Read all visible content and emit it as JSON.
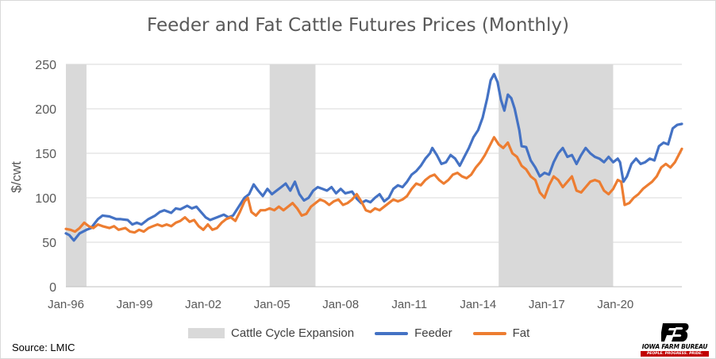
{
  "chart_data": {
    "type": "line",
    "title": "Feeder and Fat Cattle Futures Prices (Monthly)",
    "xlabel": "",
    "ylabel": "$/cwt",
    "ylim": [
      0,
      250
    ],
    "yticks": [
      0,
      50,
      100,
      150,
      200,
      250
    ],
    "xlim": [
      1996.0,
      2022.9
    ],
    "xticks": [
      {
        "label": "Jan-96",
        "x": 1996
      },
      {
        "label": "Jan-99",
        "x": 1999
      },
      {
        "label": "Jan-02",
        "x": 2002
      },
      {
        "label": "Jan-05",
        "x": 2005
      },
      {
        "label": "Jan-08",
        "x": 2008
      },
      {
        "label": "Jan-11",
        "x": 2011
      },
      {
        "label": "Jan-14",
        "x": 2014
      },
      {
        "label": "Jan-17",
        "x": 2017
      },
      {
        "label": "Jan-20",
        "x": 2020
      }
    ],
    "grid": true,
    "legend_position": "bottom",
    "shaded_periods": {
      "name": "Cattle Cycle Expansion",
      "color": "#d9d9d9",
      "ranges": [
        [
          1996.0,
          1996.9
        ],
        [
          2004.9,
          2006.9
        ],
        [
          2014.9,
          2019.9
        ]
      ]
    },
    "series": [
      {
        "name": "Feeder",
        "color": "#4472c4",
        "points": [
          [
            1996.0,
            60
          ],
          [
            1996.15,
            58
          ],
          [
            1996.35,
            52
          ],
          [
            1996.6,
            60
          ],
          [
            1996.9,
            64
          ],
          [
            1997.1,
            66
          ],
          [
            1997.4,
            76
          ],
          [
            1997.6,
            80
          ],
          [
            1997.9,
            79
          ],
          [
            1998.2,
            76
          ],
          [
            1998.4,
            76
          ],
          [
            1998.7,
            75
          ],
          [
            1998.9,
            70
          ],
          [
            1999.1,
            72
          ],
          [
            1999.3,
            70
          ],
          [
            1999.6,
            76
          ],
          [
            1999.9,
            80
          ],
          [
            2000.1,
            84
          ],
          [
            2000.3,
            86
          ],
          [
            2000.6,
            83
          ],
          [
            2000.8,
            88
          ],
          [
            2001.0,
            87
          ],
          [
            2001.3,
            91
          ],
          [
            2001.5,
            88
          ],
          [
            2001.7,
            90
          ],
          [
            2001.9,
            84
          ],
          [
            2002.1,
            78
          ],
          [
            2002.3,
            75
          ],
          [
            2002.6,
            78
          ],
          [
            2002.9,
            81
          ],
          [
            2003.1,
            78
          ],
          [
            2003.3,
            80
          ],
          [
            2003.6,
            92
          ],
          [
            2003.8,
            100
          ],
          [
            2004.0,
            104
          ],
          [
            2004.2,
            115
          ],
          [
            2004.4,
            108
          ],
          [
            2004.6,
            102
          ],
          [
            2004.8,
            110
          ],
          [
            2005.0,
            104
          ],
          [
            2005.2,
            108
          ],
          [
            2005.4,
            112
          ],
          [
            2005.6,
            116
          ],
          [
            2005.8,
            108
          ],
          [
            2006.0,
            118
          ],
          [
            2006.2,
            104
          ],
          [
            2006.4,
            97
          ],
          [
            2006.6,
            100
          ],
          [
            2006.8,
            108
          ],
          [
            2007.0,
            112
          ],
          [
            2007.2,
            110
          ],
          [
            2007.4,
            108
          ],
          [
            2007.6,
            112
          ],
          [
            2007.8,
            105
          ],
          [
            2008.0,
            110
          ],
          [
            2008.2,
            105
          ],
          [
            2008.5,
            107
          ],
          [
            2008.7,
            99
          ],
          [
            2008.9,
            94
          ],
          [
            2009.1,
            97
          ],
          [
            2009.3,
            95
          ],
          [
            2009.5,
            100
          ],
          [
            2009.7,
            104
          ],
          [
            2009.9,
            96
          ],
          [
            2010.1,
            100
          ],
          [
            2010.3,
            110
          ],
          [
            2010.5,
            114
          ],
          [
            2010.7,
            112
          ],
          [
            2010.9,
            118
          ],
          [
            2011.1,
            126
          ],
          [
            2011.3,
            130
          ],
          [
            2011.5,
            136
          ],
          [
            2011.7,
            144
          ],
          [
            2011.9,
            150
          ],
          [
            2012.0,
            156
          ],
          [
            2012.2,
            148
          ],
          [
            2012.4,
            138
          ],
          [
            2012.6,
            140
          ],
          [
            2012.8,
            148
          ],
          [
            2013.0,
            144
          ],
          [
            2013.2,
            136
          ],
          [
            2013.4,
            146
          ],
          [
            2013.6,
            156
          ],
          [
            2013.8,
            168
          ],
          [
            2014.0,
            176
          ],
          [
            2014.2,
            190
          ],
          [
            2014.4,
            212
          ],
          [
            2014.55,
            232
          ],
          [
            2014.7,
            239
          ],
          [
            2014.85,
            230
          ],
          [
            2015.0,
            210
          ],
          [
            2015.15,
            198
          ],
          [
            2015.3,
            216
          ],
          [
            2015.45,
            212
          ],
          [
            2015.6,
            200
          ],
          [
            2015.8,
            176
          ],
          [
            2015.9,
            158
          ],
          [
            2016.1,
            157
          ],
          [
            2016.3,
            142
          ],
          [
            2016.5,
            134
          ],
          [
            2016.7,
            124
          ],
          [
            2016.9,
            128
          ],
          [
            2017.1,
            126
          ],
          [
            2017.3,
            140
          ],
          [
            2017.5,
            150
          ],
          [
            2017.7,
            156
          ],
          [
            2017.9,
            146
          ],
          [
            2018.1,
            148
          ],
          [
            2018.3,
            138
          ],
          [
            2018.5,
            148
          ],
          [
            2018.7,
            156
          ],
          [
            2018.9,
            150
          ],
          [
            2019.1,
            146
          ],
          [
            2019.3,
            144
          ],
          [
            2019.5,
            140
          ],
          [
            2019.7,
            146
          ],
          [
            2019.9,
            140
          ],
          [
            2020.1,
            144
          ],
          [
            2020.2,
            140
          ],
          [
            2020.35,
            118
          ],
          [
            2020.5,
            124
          ],
          [
            2020.7,
            138
          ],
          [
            2020.9,
            144
          ],
          [
            2021.1,
            138
          ],
          [
            2021.3,
            140
          ],
          [
            2021.5,
            144
          ],
          [
            2021.7,
            142
          ],
          [
            2021.9,
            158
          ],
          [
            2022.1,
            162
          ],
          [
            2022.3,
            160
          ],
          [
            2022.5,
            178
          ],
          [
            2022.7,
            182
          ],
          [
            2022.9,
            183
          ]
        ]
      },
      {
        "name": "Fat",
        "color": "#ed7d31",
        "points": [
          [
            1996.0,
            65
          ],
          [
            1996.2,
            64
          ],
          [
            1996.4,
            62
          ],
          [
            1996.6,
            66
          ],
          [
            1996.8,
            72
          ],
          [
            1997.0,
            68
          ],
          [
            1997.2,
            66
          ],
          [
            1997.4,
            70
          ],
          [
            1997.6,
            68
          ],
          [
            1997.9,
            66
          ],
          [
            1998.1,
            68
          ],
          [
            1998.3,
            64
          ],
          [
            1998.6,
            66
          ],
          [
            1998.8,
            62
          ],
          [
            1999.0,
            61
          ],
          [
            1999.2,
            64
          ],
          [
            1999.4,
            62
          ],
          [
            1999.6,
            66
          ],
          [
            1999.8,
            68
          ],
          [
            2000.0,
            70
          ],
          [
            2000.2,
            68
          ],
          [
            2000.4,
            70
          ],
          [
            2000.6,
            68
          ],
          [
            2000.8,
            72
          ],
          [
            2001.0,
            74
          ],
          [
            2001.2,
            78
          ],
          [
            2001.4,
            73
          ],
          [
            2001.6,
            75
          ],
          [
            2001.8,
            68
          ],
          [
            2002.0,
            64
          ],
          [
            2002.2,
            70
          ],
          [
            2002.4,
            64
          ],
          [
            2002.6,
            66
          ],
          [
            2002.8,
            72
          ],
          [
            2003.0,
            76
          ],
          [
            2003.2,
            78
          ],
          [
            2003.4,
            74
          ],
          [
            2003.6,
            84
          ],
          [
            2003.8,
            96
          ],
          [
            2003.95,
            100
          ],
          [
            2004.1,
            84
          ],
          [
            2004.3,
            80
          ],
          [
            2004.5,
            86
          ],
          [
            2004.7,
            86
          ],
          [
            2004.9,
            88
          ],
          [
            2005.1,
            86
          ],
          [
            2005.3,
            90
          ],
          [
            2005.5,
            86
          ],
          [
            2005.7,
            90
          ],
          [
            2005.9,
            94
          ],
          [
            2006.1,
            88
          ],
          [
            2006.3,
            80
          ],
          [
            2006.5,
            82
          ],
          [
            2006.7,
            90
          ],
          [
            2006.9,
            94
          ],
          [
            2007.1,
            98
          ],
          [
            2007.3,
            96
          ],
          [
            2007.5,
            92
          ],
          [
            2007.7,
            96
          ],
          [
            2007.9,
            98
          ],
          [
            2008.1,
            92
          ],
          [
            2008.3,
            94
          ],
          [
            2008.5,
            98
          ],
          [
            2008.7,
            104
          ],
          [
            2008.9,
            96
          ],
          [
            2009.1,
            86
          ],
          [
            2009.3,
            84
          ],
          [
            2009.5,
            88
          ],
          [
            2009.7,
            86
          ],
          [
            2009.9,
            90
          ],
          [
            2010.1,
            94
          ],
          [
            2010.3,
            98
          ],
          [
            2010.5,
            96
          ],
          [
            2010.7,
            98
          ],
          [
            2010.9,
            102
          ],
          [
            2011.1,
            110
          ],
          [
            2011.3,
            116
          ],
          [
            2011.5,
            114
          ],
          [
            2011.7,
            120
          ],
          [
            2011.9,
            124
          ],
          [
            2012.1,
            126
          ],
          [
            2012.3,
            120
          ],
          [
            2012.5,
            116
          ],
          [
            2012.7,
            120
          ],
          [
            2012.9,
            126
          ],
          [
            2013.1,
            128
          ],
          [
            2013.3,
            124
          ],
          [
            2013.5,
            122
          ],
          [
            2013.7,
            126
          ],
          [
            2013.9,
            134
          ],
          [
            2014.1,
            140
          ],
          [
            2014.3,
            148
          ],
          [
            2014.5,
            158
          ],
          [
            2014.7,
            168
          ],
          [
            2014.9,
            160
          ],
          [
            2015.1,
            156
          ],
          [
            2015.3,
            162
          ],
          [
            2015.5,
            150
          ],
          [
            2015.7,
            146
          ],
          [
            2015.9,
            136
          ],
          [
            2016.1,
            132
          ],
          [
            2016.3,
            124
          ],
          [
            2016.5,
            120
          ],
          [
            2016.7,
            106
          ],
          [
            2016.9,
            100
          ],
          [
            2017.1,
            114
          ],
          [
            2017.3,
            124
          ],
          [
            2017.5,
            120
          ],
          [
            2017.7,
            112
          ],
          [
            2017.9,
            118
          ],
          [
            2018.1,
            124
          ],
          [
            2018.3,
            108
          ],
          [
            2018.5,
            106
          ],
          [
            2018.7,
            112
          ],
          [
            2018.9,
            118
          ],
          [
            2019.1,
            120
          ],
          [
            2019.3,
            118
          ],
          [
            2019.5,
            108
          ],
          [
            2019.7,
            104
          ],
          [
            2019.9,
            110
          ],
          [
            2020.1,
            120
          ],
          [
            2020.25,
            118
          ],
          [
            2020.4,
            92
          ],
          [
            2020.6,
            94
          ],
          [
            2020.8,
            100
          ],
          [
            2021.0,
            104
          ],
          [
            2021.2,
            110
          ],
          [
            2021.4,
            114
          ],
          [
            2021.6,
            118
          ],
          [
            2021.8,
            124
          ],
          [
            2022.0,
            134
          ],
          [
            2022.2,
            138
          ],
          [
            2022.4,
            134
          ],
          [
            2022.6,
            140
          ],
          [
            2022.8,
            150
          ],
          [
            2022.9,
            155
          ]
        ]
      }
    ]
  },
  "source": "Source: LMIC",
  "logo": {
    "name": "IOWA FARM BUREAU",
    "tagline": "PEOPLE. PROGRESS. PRIDE."
  }
}
